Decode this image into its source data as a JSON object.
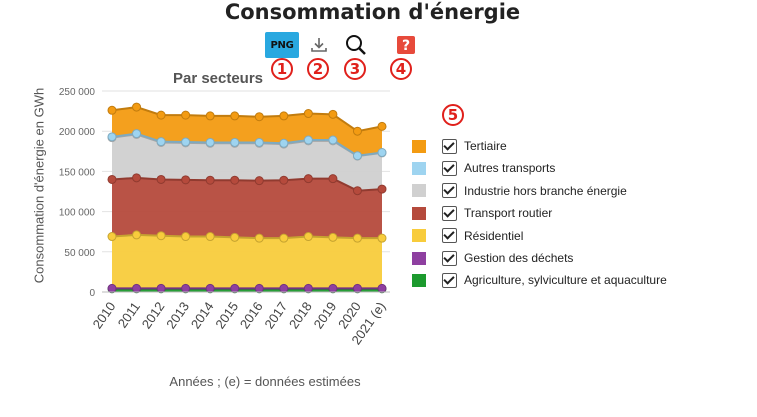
{
  "title": "Consommation d'énergie",
  "toolbar": {
    "png_label": "PNG",
    "badges": [
      "1",
      "2",
      "3",
      "4",
      "5"
    ]
  },
  "chart_data": {
    "type": "area",
    "stacked": true,
    "title": "Par secteurs",
    "xlabel": "Années ; (e) = données estimées",
    "ylabel": "Consommation d'énergie en GWh",
    "ylim": [
      0,
      250000
    ],
    "yticks": [
      "0",
      "50 000",
      "100 000",
      "150 000",
      "200 000",
      "250 000"
    ],
    "yticks_values": [
      0,
      50000,
      100000,
      150000,
      200000,
      250000
    ],
    "categories": [
      "2010",
      "2011",
      "2012",
      "2013",
      "2014",
      "2015",
      "2016",
      "2017",
      "2018",
      "2019",
      "2020",
      "2021 (e)"
    ],
    "series": [
      {
        "name": "Agriculture, sylviculture et aquaculture",
        "color": "#1c9a2e",
        "values": [
          4000,
          4000,
          4000,
          4000,
          4000,
          4000,
          4000,
          4000,
          4000,
          4000,
          4000,
          4000
        ]
      },
      {
        "name": "Gestion des déchets",
        "color": "#8e3fa0",
        "values": [
          500,
          500,
          500,
          500,
          500,
          500,
          500,
          500,
          500,
          500,
          500,
          500
        ]
      },
      {
        "name": "Résidentiel",
        "color": "#f8cc3c",
        "values": [
          64500,
          66500,
          65500,
          64500,
          64500,
          63500,
          62500,
          62500,
          64500,
          63500,
          62500,
          62500
        ]
      },
      {
        "name": "Transport routier",
        "color": "#b54a3c",
        "values": [
          71000,
          71000,
          70000,
          70500,
          70000,
          71000,
          71500,
          72000,
          72000,
          73000,
          59000,
          61000
        ]
      },
      {
        "name": "Industrie hors branche énergie",
        "color": "#d0d0d0",
        "values": [
          52000,
          54000,
          46000,
          46000,
          46000,
          46000,
          46500,
          45000,
          47000,
          47000,
          43000,
          45000
        ]
      },
      {
        "name": "Autres transports",
        "color": "#9ed4f0",
        "values": [
          1000,
          1000,
          1000,
          1000,
          1000,
          1000,
          1000,
          1000,
          1000,
          1000,
          500,
          500
        ]
      },
      {
        "name": "Tertiaire",
        "color": "#f39b12",
        "values": [
          33000,
          33000,
          33000,
          33500,
          33000,
          33000,
          32000,
          34000,
          33000,
          32000,
          30500,
          32500
        ]
      }
    ],
    "legend_order": [
      "Tertiaire",
      "Autres transports",
      "Industrie hors branche énergie",
      "Transport routier",
      "Résidentiel",
      "Gestion des déchets",
      "Agriculture, sylviculture et aquaculture"
    ]
  }
}
